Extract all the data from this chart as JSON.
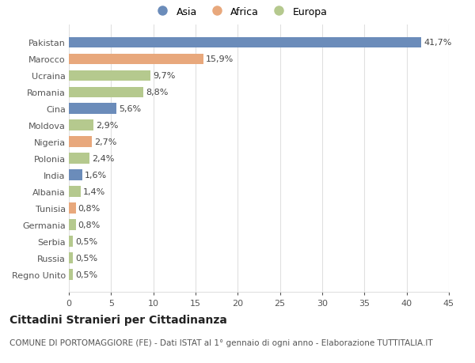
{
  "countries": [
    "Pakistan",
    "Marocco",
    "Ucraina",
    "Romania",
    "Cina",
    "Moldova",
    "Nigeria",
    "Polonia",
    "India",
    "Albania",
    "Tunisia",
    "Germania",
    "Serbia",
    "Russia",
    "Regno Unito"
  ],
  "values": [
    41.7,
    15.9,
    9.7,
    8.8,
    5.6,
    2.9,
    2.7,
    2.4,
    1.6,
    1.4,
    0.8,
    0.8,
    0.5,
    0.5,
    0.5
  ],
  "labels": [
    "41,7%",
    "15,9%",
    "9,7%",
    "8,8%",
    "5,6%",
    "2,9%",
    "2,7%",
    "2,4%",
    "1,6%",
    "1,4%",
    "0,8%",
    "0,8%",
    "0,5%",
    "0,5%",
    "0,5%"
  ],
  "continents": [
    "Asia",
    "Africa",
    "Europa",
    "Europa",
    "Asia",
    "Europa",
    "Africa",
    "Europa",
    "Asia",
    "Europa",
    "Africa",
    "Europa",
    "Europa",
    "Europa",
    "Europa"
  ],
  "colors": {
    "Asia": "#6b8cba",
    "Africa": "#e8a87c",
    "Europa": "#b5c98e"
  },
  "xlim": [
    0,
    45
  ],
  "xticks": [
    0,
    5,
    10,
    15,
    20,
    25,
    30,
    35,
    40,
    45
  ],
  "title": "Cittadini Stranieri per Cittadinanza",
  "subtitle": "COMUNE DI PORTOMAGGIORE (FE) - Dati ISTAT al 1° gennaio di ogni anno - Elaborazione TUTTITALIA.IT",
  "background_color": "#ffffff",
  "plot_bg_color": "#ffffff",
  "grid_color": "#e0e0e0",
  "bar_height": 0.65,
  "title_fontsize": 10,
  "subtitle_fontsize": 7.5,
  "tick_fontsize": 8,
  "label_fontsize": 8,
  "legend_fontsize": 9
}
